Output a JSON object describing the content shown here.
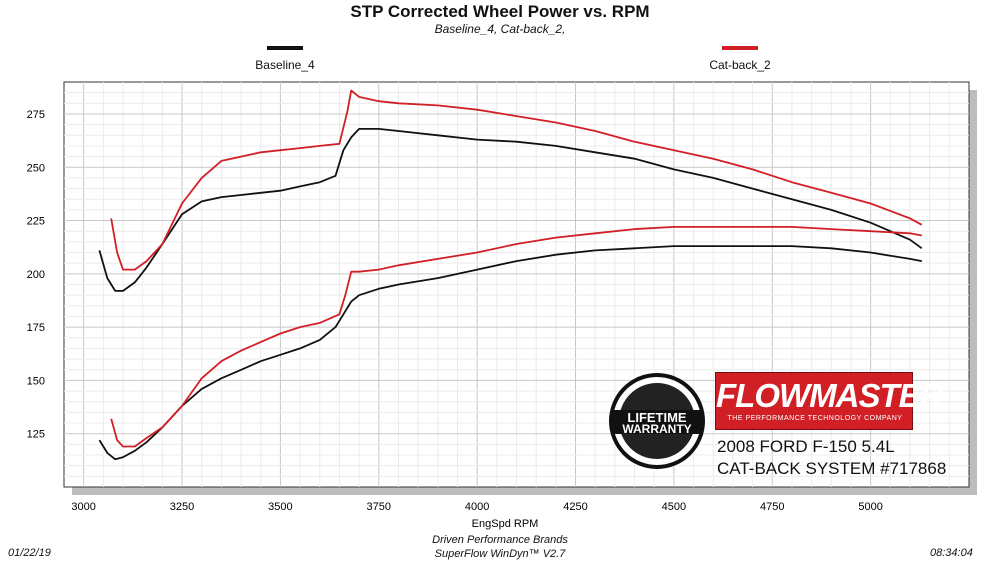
{
  "chart_data": {
    "type": "line",
    "title": "STP Corrected Wheel Power vs. RPM",
    "subtitle": "Baseline_4, Cat-back_2,",
    "xlabel": "EngSpd  RPM",
    "ylabel": "",
    "xlim": [
      2950,
      5250
    ],
    "ylim": [
      100,
      290
    ],
    "x_ticks": [
      "3000",
      "3250",
      "3500",
      "3750",
      "4000",
      "4250",
      "4500",
      "4750",
      "5000"
    ],
    "y_ticks": [
      "125",
      "150",
      "175",
      "200",
      "225",
      "250",
      "275"
    ],
    "grid": true,
    "legend_placement": "top",
    "series": [
      {
        "name": "Baseline_4",
        "color": "#111111",
        "group": "upper",
        "x": [
          3040,
          3060,
          3080,
          3100,
          3130,
          3160,
          3200,
          3250,
          3300,
          3350,
          3400,
          3450,
          3500,
          3550,
          3600,
          3640,
          3660,
          3680,
          3700,
          3750,
          3800,
          3900,
          4000,
          4100,
          4200,
          4300,
          4400,
          4500,
          4600,
          4700,
          4800,
          4900,
          5000,
          5100,
          5130
        ],
        "values": [
          211,
          198,
          192,
          192,
          196,
          203,
          214,
          228,
          234,
          236,
          237,
          238,
          239,
          241,
          243,
          246,
          258,
          264,
          268,
          268,
          267,
          265,
          263,
          262,
          260,
          257,
          254,
          249,
          245,
          240,
          235,
          230,
          224,
          216,
          212
        ]
      },
      {
        "name": "Cat-back_2",
        "color": "#d21f26",
        "group": "upper",
        "x": [
          3070,
          3085,
          3100,
          3130,
          3160,
          3200,
          3250,
          3300,
          3350,
          3400,
          3450,
          3500,
          3550,
          3600,
          3650,
          3670,
          3680,
          3700,
          3750,
          3800,
          3900,
          4000,
          4100,
          4200,
          4300,
          4400,
          4500,
          4600,
          4700,
          4800,
          4900,
          5000,
          5100,
          5130
        ],
        "values": [
          226,
          210,
          202,
          202,
          206,
          214,
          233,
          245,
          253,
          255,
          257,
          258,
          259,
          260,
          261,
          276,
          286,
          283,
          281,
          280,
          279,
          277,
          274,
          271,
          267,
          262,
          258,
          254,
          249,
          243,
          238,
          233,
          226,
          223
        ]
      },
      {
        "name": "Baseline_4",
        "color": "#111111",
        "group": "lower",
        "x": [
          3040,
          3060,
          3080,
          3100,
          3130,
          3160,
          3200,
          3250,
          3300,
          3350,
          3400,
          3450,
          3500,
          3550,
          3600,
          3640,
          3660,
          3680,
          3700,
          3750,
          3800,
          3900,
          4000,
          4100,
          4200,
          4300,
          4400,
          4500,
          4600,
          4700,
          4800,
          4900,
          5000,
          5100,
          5130
        ],
        "values": [
          122,
          116,
          113,
          114,
          117,
          121,
          128,
          138,
          146,
          151,
          155,
          159,
          162,
          165,
          169,
          175,
          181,
          187,
          190,
          193,
          195,
          198,
          202,
          206,
          209,
          211,
          212,
          213,
          213,
          213,
          213,
          212,
          210,
          207,
          206
        ]
      },
      {
        "name": "Cat-back_2",
        "color": "#d21f26",
        "group": "lower",
        "x": [
          3070,
          3085,
          3100,
          3130,
          3160,
          3200,
          3250,
          3300,
          3350,
          3400,
          3450,
          3500,
          3550,
          3600,
          3650,
          3665,
          3680,
          3700,
          3750,
          3800,
          3900,
          4000,
          4100,
          4200,
          4300,
          4400,
          4500,
          4600,
          4700,
          4800,
          4900,
          5000,
          5100,
          5130
        ],
        "values": [
          132,
          122,
          119,
          119,
          123,
          128,
          138,
          151,
          159,
          164,
          168,
          172,
          175,
          177,
          181,
          190,
          201,
          201,
          202,
          204,
          207,
          210,
          214,
          217,
          219,
          221,
          222,
          222,
          222,
          222,
          221,
          220,
          219,
          218
        ]
      }
    ]
  },
  "legend": {
    "baseline_label": "Baseline_4",
    "catback_label": "Cat-back_2",
    "baseline_color": "#111111",
    "catback_color": "#d21f26"
  },
  "overlay": {
    "brand": "FLOWMASTER",
    "brand_tagline": "THE PERFORMANCE TECHNOLOGY COMPANY",
    "brand_color": "#d21f26",
    "badge_icon": "lifetime-warranty-badge-icon",
    "badge_line1": "LIFETIME",
    "badge_line2": "WARRANTY",
    "vehicle": "2008 FORD F-150 5.4L",
    "system": "CAT-BACK SYSTEM #717868"
  },
  "footer": {
    "date": "01/22/19",
    "company": "Driven Performance Brands",
    "software": "SuperFlow WinDyn™  V2.7",
    "time": "08:34:04"
  }
}
